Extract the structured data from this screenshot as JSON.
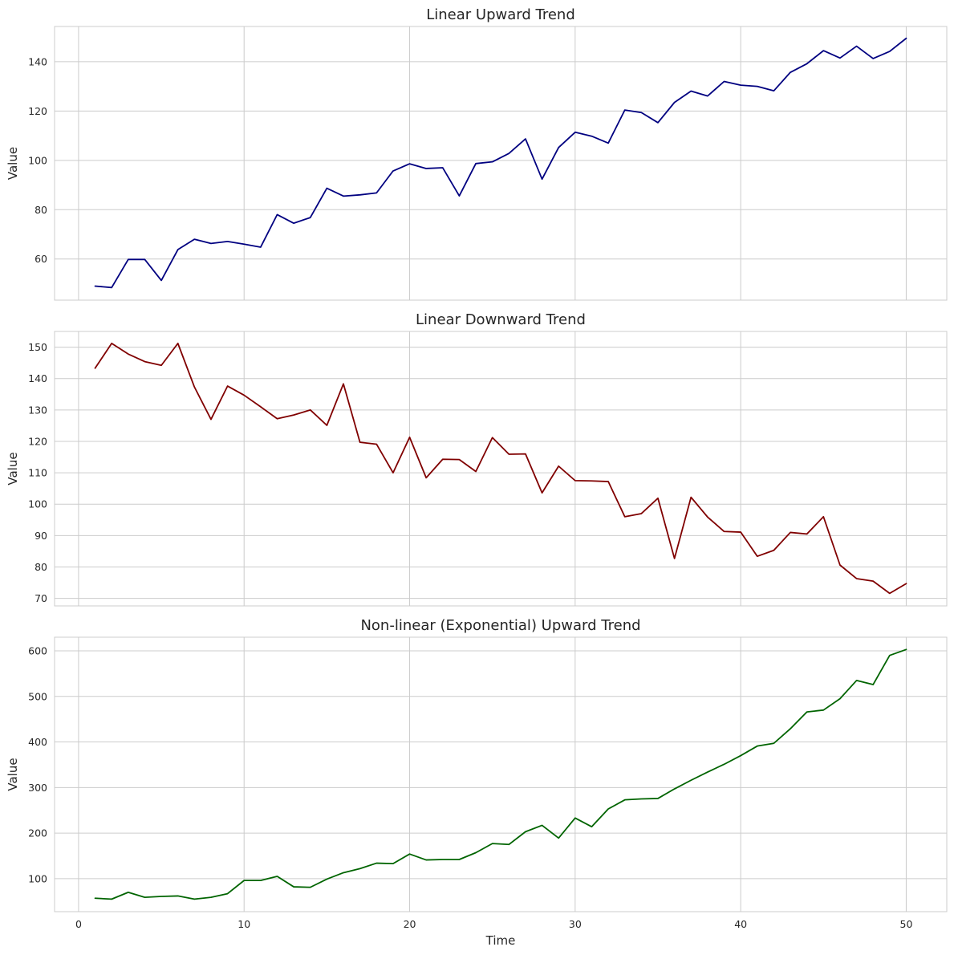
{
  "chart_data": [
    {
      "type": "line",
      "title": "Linear Upward Trend",
      "xlabel": "",
      "ylabel": "Value",
      "color": "#000080",
      "xlim": [
        -1.45,
        52.45
      ],
      "ylim": [
        43.3,
        154.3
      ],
      "xticks": [
        0,
        10,
        20,
        30,
        40,
        50
      ],
      "xtick_labels": [
        "",
        "",
        "",
        "",
        "",
        ""
      ],
      "yticks": [
        60,
        80,
        100,
        120,
        140
      ],
      "ytick_labels": [
        "60",
        "80",
        "100",
        "120",
        "140"
      ],
      "grid": true,
      "x": [
        1,
        2,
        3,
        4,
        5,
        6,
        7,
        8,
        9,
        10,
        11,
        12,
        13,
        14,
        15,
        16,
        17,
        18,
        19,
        20,
        21,
        22,
        23,
        24,
        25,
        26,
        27,
        28,
        29,
        30,
        31,
        32,
        33,
        34,
        35,
        36,
        37,
        38,
        39,
        40,
        41,
        42,
        43,
        44,
        45,
        46,
        47,
        48,
        49,
        50
      ],
      "values": [
        49.0,
        48.4,
        59.8,
        59.8,
        51.3,
        63.8,
        68.0,
        66.3,
        67.1,
        66.0,
        64.8,
        78.0,
        74.5,
        76.8,
        88.7,
        85.5,
        86.0,
        86.8,
        95.7,
        98.6,
        96.7,
        97.0,
        85.6,
        98.7,
        99.4,
        102.8,
        108.7,
        92.4,
        105.2,
        111.4,
        109.8,
        107.0,
        120.4,
        119.4,
        115.3,
        123.5,
        128.1,
        126.1,
        132.0,
        130.5,
        130.0,
        128.2,
        135.7,
        139.2,
        144.5,
        141.5,
        146.3,
        141.3,
        144.2,
        149.5
      ]
    },
    {
      "type": "line",
      "title": "Linear Downward Trend",
      "xlabel": "",
      "ylabel": "Value",
      "color": "#800000",
      "xlim": [
        -1.45,
        52.45
      ],
      "ylim": [
        67.6,
        155.0
      ],
      "xticks": [
        0,
        10,
        20,
        30,
        40,
        50
      ],
      "xtick_labels": [
        "",
        "",
        "",
        "",
        "",
        ""
      ],
      "yticks": [
        70,
        80,
        90,
        100,
        110,
        120,
        130,
        140,
        150
      ],
      "ytick_labels": [
        "70",
        "80",
        "90",
        "100",
        "110",
        "120",
        "130",
        "140",
        "150"
      ],
      "grid": true,
      "x": [
        1,
        2,
        3,
        4,
        5,
        6,
        7,
        8,
        9,
        10,
        11,
        12,
        13,
        14,
        15,
        16,
        17,
        18,
        19,
        20,
        21,
        22,
        23,
        24,
        25,
        26,
        27,
        28,
        29,
        30,
        31,
        32,
        33,
        34,
        35,
        36,
        37,
        38,
        39,
        40,
        41,
        42,
        43,
        44,
        45,
        46,
        47,
        48,
        49,
        50
      ],
      "values": [
        143.3,
        151.2,
        147.8,
        145.4,
        144.2,
        151.2,
        137.3,
        127.0,
        137.6,
        134.7,
        131.0,
        127.2,
        128.4,
        130.0,
        125.1,
        138.3,
        119.7,
        119.1,
        110.0,
        121.3,
        108.4,
        114.3,
        114.2,
        110.4,
        121.2,
        115.9,
        116.0,
        103.6,
        112.1,
        107.5,
        107.4,
        107.2,
        96.0,
        97.0,
        101.9,
        82.7,
        102.2,
        95.9,
        91.3,
        91.1,
        83.4,
        85.3,
        91.0,
        90.5,
        96.0,
        80.6,
        76.3,
        75.5,
        71.6,
        74.7
      ]
    },
    {
      "type": "line",
      "title": "Non-linear (Exponential) Upward Trend",
      "xlabel": "Time",
      "ylabel": "Value",
      "color": "#006400",
      "xlim": [
        -1.45,
        52.45
      ],
      "ylim": [
        27.5,
        630.0
      ],
      "xticks": [
        0,
        10,
        20,
        30,
        40,
        50
      ],
      "xtick_labels": [
        "0",
        "10",
        "20",
        "30",
        "40",
        "50"
      ],
      "yticks": [
        100,
        200,
        300,
        400,
        500,
        600
      ],
      "ytick_labels": [
        "100",
        "200",
        "300",
        "400",
        "500",
        "600"
      ],
      "grid": true,
      "x": [
        1,
        2,
        3,
        4,
        5,
        6,
        7,
        8,
        9,
        10,
        11,
        12,
        13,
        14,
        15,
        16,
        17,
        18,
        19,
        20,
        21,
        22,
        23,
        24,
        25,
        26,
        27,
        28,
        29,
        30,
        31,
        32,
        33,
        34,
        35,
        36,
        37,
        38,
        39,
        40,
        41,
        42,
        43,
        44,
        45,
        46,
        47,
        48,
        49,
        50
      ],
      "values": [
        57,
        55,
        70,
        59,
        61,
        62,
        55,
        59,
        67,
        96,
        96,
        105,
        82,
        81,
        99,
        113,
        122,
        134,
        133,
        154,
        141,
        142,
        142,
        157,
        177,
        175,
        203,
        217,
        189,
        233,
        214,
        253,
        273,
        275,
        276,
        297,
        316,
        334,
        351,
        370,
        391,
        397,
        429,
        466,
        470,
        495,
        535,
        526,
        590,
        603
      ]
    }
  ]
}
